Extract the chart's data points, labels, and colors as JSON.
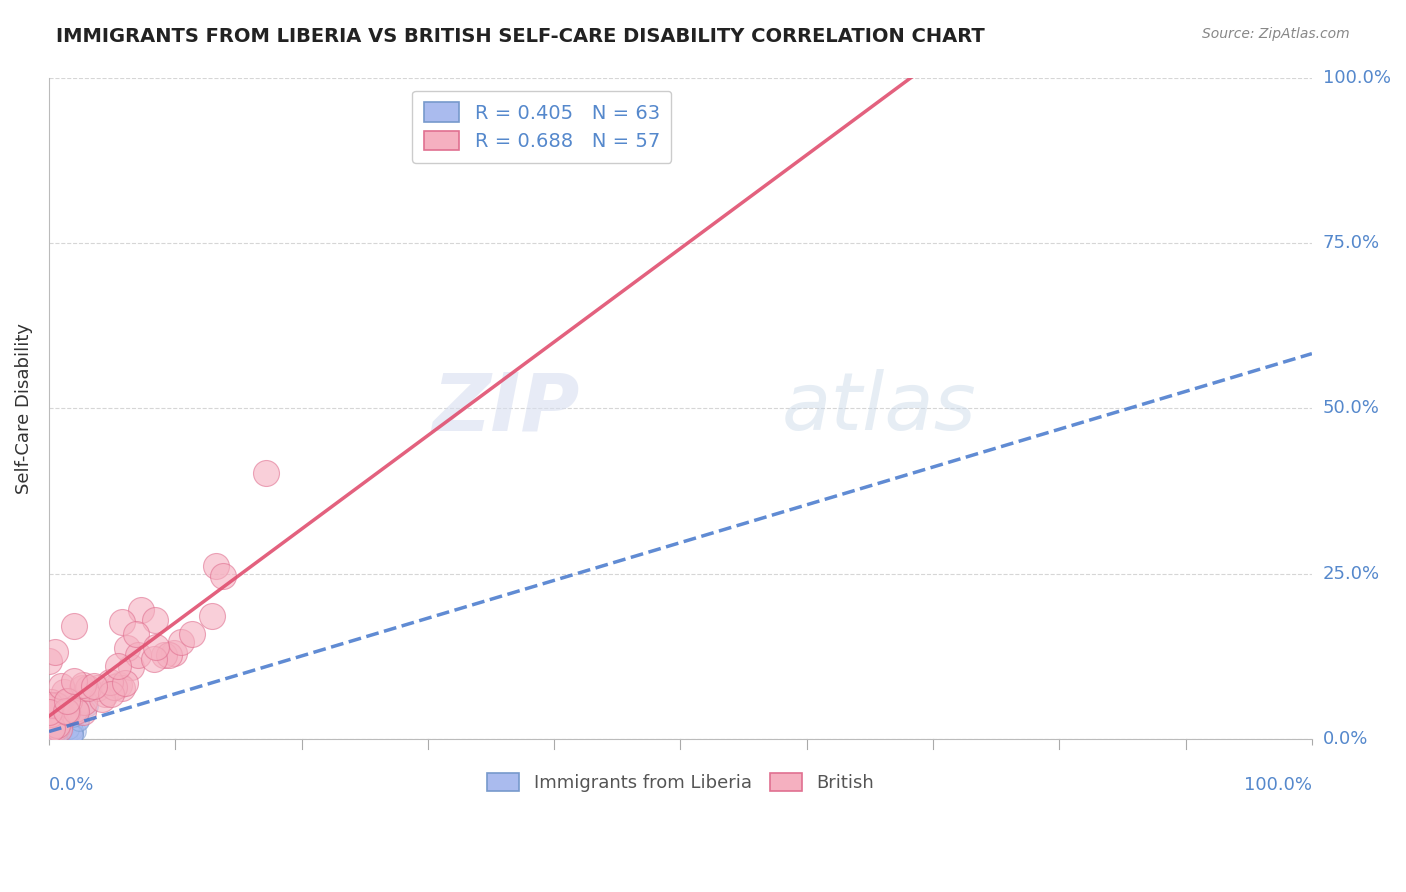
{
  "title": "IMMIGRANTS FROM LIBERIA VS BRITISH SELF-CARE DISABILITY CORRELATION CHART",
  "source": "Source: ZipAtlas.com",
  "ylabel": "Self-Care Disability",
  "watermark_zip": "ZIP",
  "watermark_atlas": "atlas",
  "legend_entries": [
    {
      "label": "R = 0.405   N = 63",
      "face_color": "#aac4f0",
      "edge_color": "#7799cc"
    },
    {
      "label": "R = 0.688   N = 57",
      "face_color": "#f5a0b0",
      "edge_color": "#e07090"
    }
  ],
  "xlim": [
    0.0,
    1.0
  ],
  "ylim": [
    0.0,
    1.0
  ],
  "ytick_values": [
    0.0,
    0.25,
    0.5,
    0.75,
    1.0
  ],
  "ytick_labels": [
    "0.0%",
    "25.0%",
    "50.0%",
    "75.0%",
    "100.0%"
  ],
  "title_color": "#222222",
  "right_label_color": "#5588cc",
  "background_color": "#ffffff",
  "liberia_face": "#aabbee",
  "liberia_edge": "#7799cc",
  "liberia_line": "#4477cc",
  "british_face": "#f5b0c0",
  "british_edge": "#e07090",
  "british_line": "#e05070",
  "grid_color": "#cccccc",
  "source_color": "#888888",
  "ylabel_color": "#333333"
}
